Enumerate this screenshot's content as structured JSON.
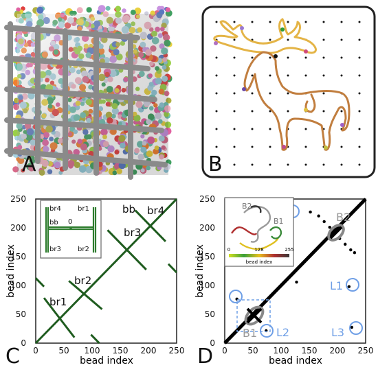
{
  "panels": {
    "a": {
      "label": "A"
    },
    "b": {
      "label": "B"
    },
    "c": {
      "label": "C"
    },
    "d": {
      "label": "D"
    }
  },
  "panel_c": {
    "xlabel": "bead index",
    "ylabel": "bead index",
    "ticks": [
      "0",
      "50",
      "100",
      "150",
      "200",
      "250"
    ],
    "annotations": {
      "bb": "bb",
      "br1": "br1",
      "br2": "br2",
      "br3": "br3",
      "br4": "br4"
    },
    "inset": {
      "br4": "br4",
      "br1": "br1",
      "bb": "bb",
      "zero": "0",
      "br3": "br3",
      "br2": "br2"
    },
    "line_color": "#1f5c1f",
    "axis_range": [
      0,
      255
    ],
    "diagonal": [
      [
        0,
        0
      ],
      [
        255,
        255
      ]
    ],
    "segments": [
      [
        [
          15,
          80
        ],
        [
          70,
          10
        ]
      ],
      [
        [
          60,
          110
        ],
        [
          120,
          60
        ]
      ],
      [
        [
          130,
          200
        ],
        [
          200,
          130
        ]
      ],
      [
        [
          180,
          235
        ],
        [
          235,
          180
        ]
      ],
      [
        [
          0,
          115
        ],
        [
          15,
          100
        ]
      ],
      [
        [
          100,
          15
        ],
        [
          115,
          0
        ]
      ],
      [
        [
          240,
          140
        ],
        [
          255,
          125
        ]
      ]
    ]
  },
  "panel_d": {
    "xlabel": "bead index",
    "ylabel": "bead index",
    "ticks": [
      "0",
      "50",
      "100",
      "150",
      "200",
      "250"
    ],
    "labels": {
      "b1": "B1",
      "b2": "B2",
      "l1": "L1",
      "l2": "L2",
      "l3": "L3"
    },
    "inset": {
      "b2": "B2",
      "b1": "B1",
      "cb_0": "0",
      "cb_128": "128",
      "cb_255": "255",
      "cb_label": "bead index"
    },
    "accent": "#6f9fe6",
    "axis_range": [
      0,
      255
    ],
    "diagonal": [
      [
        0,
        0
      ],
      [
        255,
        255
      ]
    ],
    "contact_dots": [
      [
        155,
        232
      ],
      [
        170,
        225
      ],
      [
        180,
        215
      ],
      [
        190,
        205
      ],
      [
        208,
        185
      ],
      [
        218,
        175
      ],
      [
        228,
        165
      ],
      [
        235,
        160
      ],
      [
        130,
        108
      ],
      [
        225,
        100
      ],
      [
        75,
        22
      ],
      [
        22,
        78
      ],
      [
        230,
        28
      ]
    ]
  }
}
